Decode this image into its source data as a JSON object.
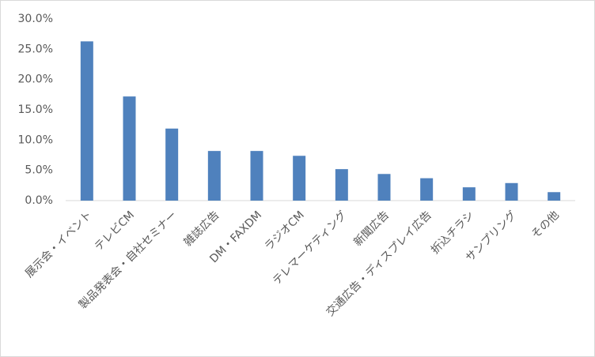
{
  "chart_data": {
    "type": "bar",
    "categories": [
      "展示会・イベント",
      "テレビCM",
      "製品発表会・自社セミナー",
      "雑誌広告",
      "DM・FAXDM",
      "ラジオCM",
      "テレマーケティング",
      "新聞広告",
      "交通広告・ディスプレイ広告",
      "折込チラシ",
      "サンプリング",
      "その他"
    ],
    "values": [
      26.3,
      17.2,
      11.9,
      8.2,
      8.2,
      7.4,
      5.2,
      4.4,
      3.7,
      2.2,
      2.9,
      1.4
    ],
    "color": "#4f81bd",
    "ylim": [
      0,
      30
    ],
    "yticks": [
      {
        "value": 0,
        "label": "0.0%"
      },
      {
        "value": 5,
        "label": "5.0%"
      },
      {
        "value": 10,
        "label": "10.0%"
      },
      {
        "value": 15,
        "label": "15.0%"
      },
      {
        "value": 20,
        "label": "20.0%"
      },
      {
        "value": 25,
        "label": "25.0%"
      },
      {
        "value": 30,
        "label": "30.0%"
      }
    ],
    "grid": false
  }
}
